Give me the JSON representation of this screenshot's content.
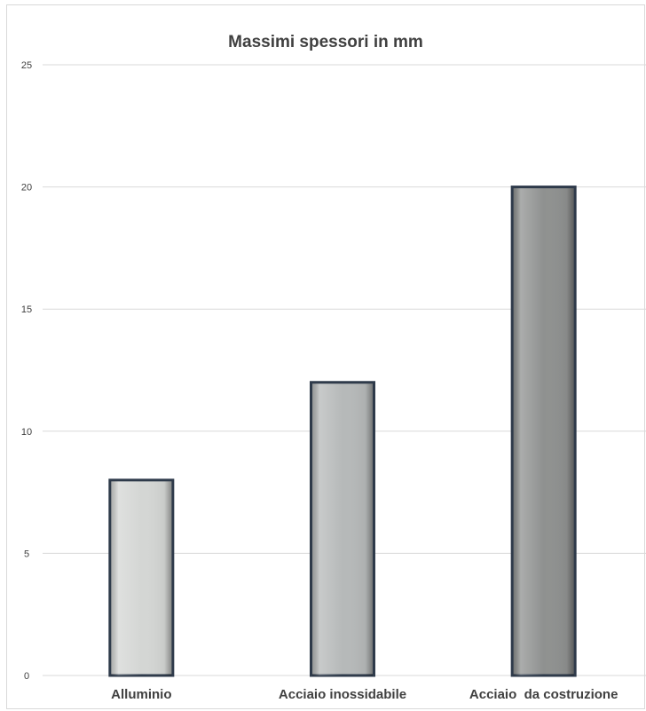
{
  "chart_data": {
    "type": "bar",
    "title": "Massimi spessori in mm",
    "categories": [
      "Alluminio",
      "Acciaio inossidabile",
      "Acciaio  da costruzione"
    ],
    "values": [
      8,
      12,
      20
    ],
    "ylim": [
      0,
      25
    ],
    "yticks": [
      "0",
      "5",
      "10",
      "15",
      "20",
      "25"
    ],
    "grid": true,
    "legend": "none",
    "colors": {
      "bar_fills": [
        "#d4d6d4",
        "#b6b9b9",
        "#8f9190"
      ],
      "bar_edge": "#2e3a4a",
      "grid": "#d9d9d9"
    }
  }
}
